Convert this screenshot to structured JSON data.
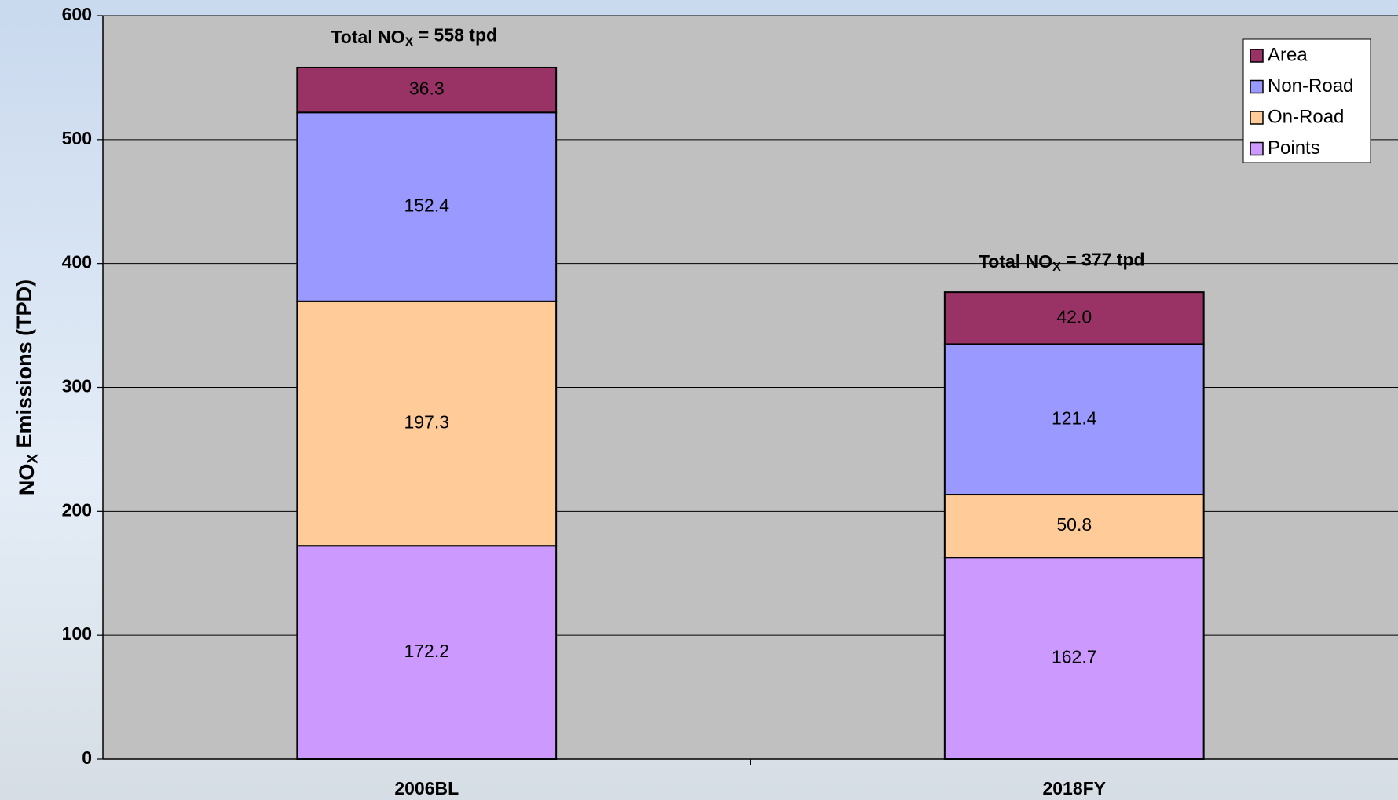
{
  "chart_data": {
    "type": "stacked_bar",
    "ylabel": [
      "NO",
      "X",
      " Emissions (TPD)"
    ],
    "categories": [
      "2006BL",
      "2018FY"
    ],
    "series": [
      {
        "name": "Points",
        "color": "#cc99ff",
        "values": [
          172.2,
          162.7
        ]
      },
      {
        "name": "On-Road",
        "color": "#ffcc99",
        "values": [
          197.3,
          50.8
        ]
      },
      {
        "name": "Non-Road",
        "color": "#9999ff",
        "values": [
          152.4,
          121.4
        ]
      },
      {
        "name": "Area",
        "color": "#993366",
        "values": [
          36.3,
          42.0
        ],
        "value_labels": [
          "36.3",
          "42.0"
        ]
      }
    ],
    "annotations": [
      [
        "Total NO",
        "X",
        " = 558 tpd"
      ],
      [
        "Total NO",
        "X",
        " = 377 tpd"
      ]
    ],
    "ylim": [
      0,
      600
    ],
    "yticks": [
      0,
      100,
      200,
      300,
      400,
      500,
      600
    ],
    "grid": true,
    "legend": "top-right",
    "plot_background": "#c0c0c0"
  }
}
